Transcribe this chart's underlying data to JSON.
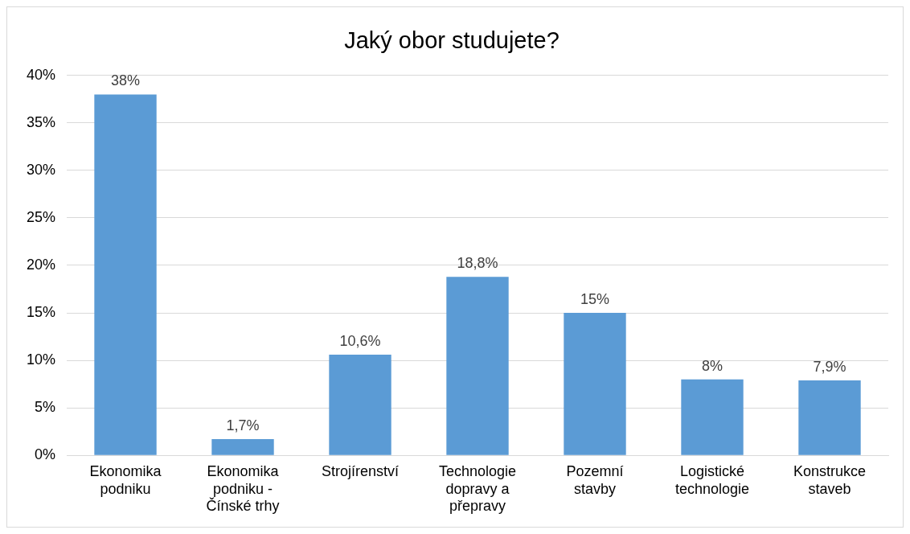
{
  "chart_data": {
    "type": "bar",
    "title": "Jaký obor studujete?",
    "categories": [
      "Ekonomika podniku",
      "Ekonomika podniku - Čínské trhy",
      "Strojírenství",
      "Technologie dopravy a přepravy",
      "Pozemní stavby",
      "Logistické technologie",
      "Konstrukce staveb"
    ],
    "values": [
      38,
      1.7,
      10.6,
      18.8,
      15,
      8,
      7.9
    ],
    "value_labels": [
      "38%",
      "1,7%",
      "10,6%",
      "18,8%",
      "15%",
      "8%",
      "7,9%"
    ],
    "color": "#5b9bd5",
    "ylim": [
      0,
      40
    ],
    "yticks": [
      {
        "value": 0,
        "label": "0%"
      },
      {
        "value": 5,
        "label": "5%"
      },
      {
        "value": 10,
        "label": "10%"
      },
      {
        "value": 15,
        "label": "15%"
      },
      {
        "value": 20,
        "label": "20%"
      },
      {
        "value": 25,
        "label": "25%"
      },
      {
        "value": 30,
        "label": "30%"
      },
      {
        "value": 35,
        "label": "35%"
      },
      {
        "value": 40,
        "label": "40%"
      }
    ],
    "grid": "y",
    "legend": false
  }
}
